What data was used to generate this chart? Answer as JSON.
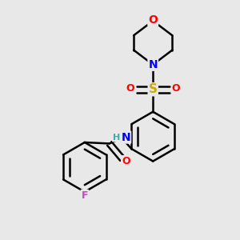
{
  "bg_color": "#e8e8e8",
  "atom_colors": {
    "C": "#000000",
    "N": "#0000ff",
    "O": "#ff0000",
    "S": "#ccaa00",
    "F": "#cc44cc",
    "H": "#44aaaa"
  },
  "bond_color": "#000000",
  "bond_width": 1.8,
  "dbo": 0.12
}
